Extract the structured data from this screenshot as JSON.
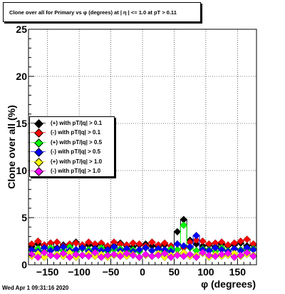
{
  "title": "Clone  over all for Primary vs φ (degrees) at | η | <= 1.0 at pT > 0.11",
  "timestamp": "Wed Apr  1 09:31:16 2020",
  "chart_data": {
    "type": "scatter",
    "xlabel": "φ (degrees)",
    "ylabel": "Clone  over all (%)",
    "xlim": [
      -180,
      180
    ],
    "ylim": [
      0,
      25
    ],
    "xticks": [
      -150,
      -100,
      -50,
      0,
      50,
      100,
      150
    ],
    "yticks": [
      0,
      5,
      10,
      15,
      20,
      25
    ],
    "xtick_labels": [
      "−150",
      "−100",
      "−50",
      "0",
      "50",
      "100",
      "150"
    ],
    "ytick_labels": [
      "0",
      "5",
      "10",
      "15",
      "20",
      "25"
    ],
    "grid": true,
    "legend_position": "left-middle",
    "x": [
      -175,
      -165,
      -155,
      -145,
      -135,
      -125,
      -115,
      -105,
      -95,
      -85,
      -75,
      -65,
      -55,
      -45,
      -35,
      -25,
      -15,
      -5,
      5,
      15,
      25,
      35,
      45,
      55,
      65,
      75,
      85,
      95,
      105,
      115,
      125,
      135,
      145,
      155,
      165,
      175
    ],
    "series": [
      {
        "name": "(+) with pT/|q| > 0.1",
        "color": "#000000",
        "values": [
          1.9,
          2.2,
          2.0,
          2.3,
          1.8,
          2.1,
          2.0,
          2.4,
          1.9,
          2.1,
          2.0,
          2.2,
          1.8,
          2.0,
          2.3,
          2.0,
          1.9,
          2.1,
          2.2,
          2.0,
          1.9,
          2.1,
          2.0,
          3.5,
          4.8,
          2.6,
          2.2,
          2.0,
          2.1,
          1.9,
          2.2,
          2.0,
          2.1,
          2.3,
          2.0,
          2.1
        ]
      },
      {
        "name": "(-) with pT/|q| > 0.1",
        "color": "#ff0000",
        "values": [
          2.2,
          2.5,
          2.1,
          2.3,
          2.4,
          2.0,
          2.2,
          2.3,
          2.1,
          2.4,
          2.2,
          2.3,
          2.0,
          2.4,
          2.2,
          2.1,
          2.3,
          2.2,
          2.0,
          2.4,
          2.1,
          2.3,
          2.0,
          2.2,
          1.8,
          2.4,
          2.6,
          2.5,
          2.2,
          2.3,
          2.4,
          2.1,
          2.3,
          2.5,
          2.7,
          2.2
        ]
      },
      {
        "name": "(+) with pT/|q| > 0.5",
        "color": "#00ff00",
        "values": [
          1.5,
          1.7,
          1.4,
          1.8,
          1.6,
          1.5,
          1.9,
          1.4,
          1.7,
          1.6,
          1.5,
          1.8,
          1.4,
          1.6,
          1.7,
          1.5,
          1.6,
          1.4,
          1.8,
          1.5,
          1.6,
          1.4,
          1.7,
          1.6,
          4.2,
          1.8,
          1.5,
          1.7,
          1.6,
          1.4,
          1.8,
          1.5,
          1.7,
          1.6,
          1.5,
          1.7
        ]
      },
      {
        "name": "(-) with pT/|q| > 0.5",
        "color": "#0000ff",
        "values": [
          1.6,
          1.4,
          1.8,
          1.5,
          1.7,
          1.9,
          1.5,
          1.6,
          1.8,
          1.4,
          1.7,
          1.5,
          1.6,
          1.9,
          1.5,
          1.7,
          1.4,
          1.6,
          1.8,
          1.5,
          1.7,
          1.6,
          1.4,
          2.2,
          2.0,
          1.9,
          3.1,
          1.6,
          1.5,
          1.8,
          1.6,
          1.4,
          1.7,
          1.5,
          1.8,
          1.6
        ]
      },
      {
        "name": "(+) with pT/|q| > 1.0",
        "color": "#ffff00",
        "values": [
          0.9,
          1.2,
          0.8,
          1.0,
          1.1,
          0.9,
          1.3,
          0.8,
          1.0,
          1.2,
          0.9,
          1.1,
          0.8,
          1.0,
          1.2,
          0.9,
          1.1,
          0.8,
          1.0,
          0.9,
          1.2,
          0.8,
          1.0,
          1.1,
          1.3,
          0.9,
          1.0,
          1.2,
          0.8,
          1.1,
          0.9,
          1.0,
          1.2,
          0.9,
          1.1,
          1.0
        ]
      },
      {
        "name": "(-) with pT/|q| > 1.0",
        "color": "#ff00ff",
        "values": [
          1.1,
          0.8,
          1.3,
          1.0,
          0.9,
          1.2,
          0.8,
          1.1,
          1.0,
          0.9,
          1.3,
          0.8,
          1.0,
          1.1,
          0.9,
          1.2,
          1.0,
          0.8,
          1.1,
          0.9,
          1.0,
          1.2,
          0.8,
          1.0,
          0.9,
          1.1,
          0.8,
          1.3,
          1.0,
          0.9,
          1.1,
          1.2,
          0.8,
          1.0,
          1.3,
          0.9
        ]
      }
    ]
  }
}
